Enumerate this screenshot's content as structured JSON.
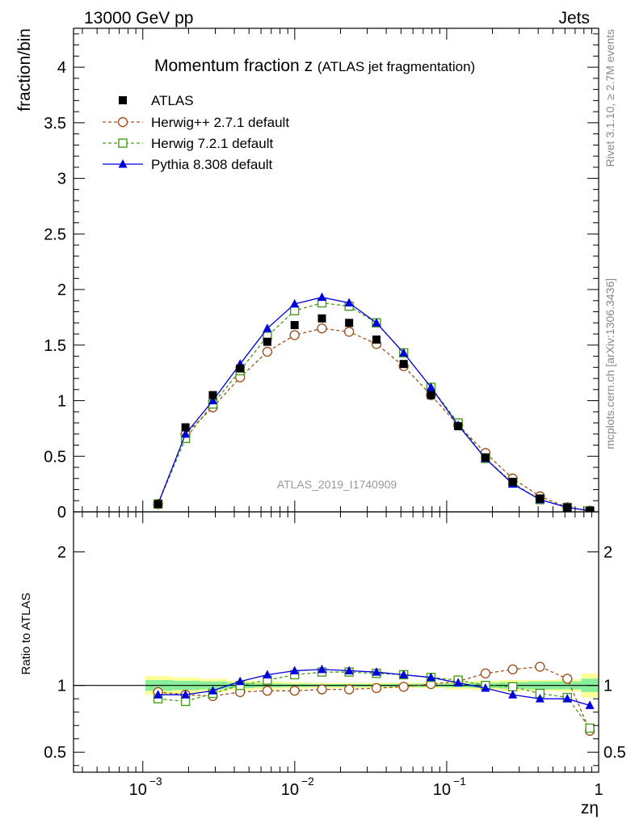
{
  "header": {
    "left": "13000 GeV pp",
    "right": "Jets"
  },
  "side_labels": {
    "rivet": "Rivet 3.1.10, ≥ 2.7M events",
    "mcplots": "mcplots.cern.ch [arXiv:1306.3436]"
  },
  "chart_data": [
    {
      "type": "scatter",
      "title": "Momentum fraction z",
      "title_suffix": "(ATLAS jet fragmentation)",
      "ylabel": "fraction/bin",
      "xscale": "log",
      "xlim": [
        0.00035,
        1
      ],
      "ylim": [
        0,
        4.35
      ],
      "yticks": [
        "0",
        "0.5",
        "1",
        "1.5",
        "2",
        "2.5",
        "3",
        "3.5",
        "4"
      ],
      "watermark": "ATLAS_2019_I1740909",
      "legend_position": "top-left",
      "x": [
        0.00126,
        0.00191,
        0.00289,
        0.00437,
        0.0066,
        0.00998,
        0.0151,
        0.0228,
        0.0345,
        0.0521,
        0.0788,
        0.119,
        0.18,
        0.272,
        0.411,
        0.622,
        0.875
      ],
      "series": [
        {
          "name": "ATLAS",
          "style": "data",
          "color": "#000000",
          "values": [
            0.07,
            0.76,
            1.05,
            1.29,
            1.53,
            1.68,
            1.74,
            1.7,
            1.55,
            1.33,
            1.05,
            0.77,
            0.49,
            0.27,
            0.12,
            0.04,
            0.01
          ]
        },
        {
          "name": "Herwig++ 2.7.1 default",
          "style": "circle",
          "color": "#a0521e",
          "values": [
            0.07,
            0.7,
            0.94,
            1.21,
            1.44,
            1.59,
            1.65,
            1.62,
            1.51,
            1.31,
            1.05,
            0.78,
            0.53,
            0.3,
            0.14,
            0.04,
            0.01
          ]
        },
        {
          "name": "Herwig 7.2.1 default",
          "style": "square",
          "color": "#4a9a1e",
          "values": [
            0.07,
            0.66,
            0.97,
            1.27,
            1.58,
            1.81,
            1.88,
            1.85,
            1.7,
            1.43,
            1.12,
            0.8,
            0.48,
            0.26,
            0.11,
            0.04,
            0.01
          ]
        },
        {
          "name": "Pythia 8.308 default",
          "style": "triangle",
          "color": "#0000dd",
          "values": [
            0.07,
            0.7,
            1.0,
            1.33,
            1.65,
            1.87,
            1.93,
            1.88,
            1.7,
            1.43,
            1.12,
            0.78,
            0.48,
            0.25,
            0.11,
            0.04,
            0.01
          ]
        }
      ]
    },
    {
      "type": "line",
      "ylabel": "Ratio to ATLAS",
      "xlabel": "zη",
      "xscale": "log",
      "xlim": [
        0.00035,
        1
      ],
      "ylim": [
        0.35,
        2.3
      ],
      "yticks": [
        "0.5",
        "1",
        "2"
      ],
      "xticks": [
        "10",
        "10",
        "10",
        "1"
      ],
      "xtick_exponents": [
        "−3",
        "−2",
        "−1",
        ""
      ],
      "x": [
        0.00126,
        0.00191,
        0.00289,
        0.00437,
        0.0066,
        0.00998,
        0.0151,
        0.0228,
        0.0345,
        0.0521,
        0.0788,
        0.119,
        0.18,
        0.272,
        0.411,
        0.622,
        0.875
      ],
      "series": [
        {
          "name": "Herwig++ 2.7.1 default",
          "style": "circle",
          "color": "#a0521e",
          "values": [
            0.95,
            0.93,
            0.92,
            0.95,
            0.96,
            0.96,
            0.97,
            0.97,
            0.98,
            0.99,
            1.01,
            1.03,
            1.09,
            1.12,
            1.14,
            1.05,
            0.66
          ]
        },
        {
          "name": "Herwig 7.2.1 default",
          "style": "square",
          "color": "#4a9a1e",
          "values": [
            0.9,
            0.88,
            0.94,
            1.0,
            1.04,
            1.08,
            1.1,
            1.1,
            1.09,
            1.08,
            1.06,
            1.04,
            1.0,
            0.99,
            0.94,
            0.91,
            0.68
          ]
        },
        {
          "name": "Pythia 8.308 default",
          "style": "triangle",
          "color": "#0000dd",
          "values": [
            0.93,
            0.93,
            0.96,
            1.03,
            1.08,
            1.11,
            1.12,
            1.11,
            1.1,
            1.08,
            1.06,
            1.02,
            0.98,
            0.93,
            0.9,
            0.9,
            0.85
          ]
        }
      ],
      "band_outer_color": "#ffff99",
      "band_inner_color": "#88ee99"
    }
  ]
}
